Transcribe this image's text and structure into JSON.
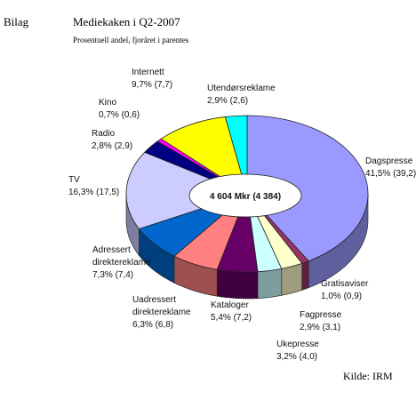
{
  "header": {
    "section": "Bilag",
    "title": "Mediekaken i Q2-2007",
    "subtitle": "Prosentuell andel, fjoråret i parentes"
  },
  "footer": {
    "source": "Kilde: IRM"
  },
  "chart_data": {
    "type": "pie",
    "style": "3d-donut",
    "center_label": "4 604 Mkr (4 384)",
    "total": 4604,
    "total_previous": 4384,
    "unit": "Mkr",
    "slices": [
      {
        "name": "Dagspresse",
        "value": 41.5,
        "previous": 39.2,
        "value_text": "41,5% (39,2)",
        "color": "#9999ff"
      },
      {
        "name": "Gratisaviser",
        "value": 1.0,
        "previous": 0.9,
        "value_text": "1,0% (0,9)",
        "color": "#993366"
      },
      {
        "name": "Fagpresse",
        "value": 2.9,
        "previous": 3.1,
        "value_text": "2,9% (3,1)",
        "color": "#ffffcc"
      },
      {
        "name": "Ukepresse",
        "value": 3.2,
        "previous": 4.0,
        "value_text": "3,2% (4,0)",
        "color": "#ccffff"
      },
      {
        "name": "Kataloger",
        "value": 5.4,
        "previous": 7.2,
        "value_text": "5,4% (7,2)",
        "color": "#660066"
      },
      {
        "name": "Uadressert direktereklame",
        "lines": [
          "Uadressert",
          "direktereklame"
        ],
        "value": 6.3,
        "previous": 6.8,
        "value_text": "6,3% (6,8)",
        "color": "#ff8080"
      },
      {
        "name": "Adressert direktereklame",
        "lines": [
          "Adressert",
          "direktereklame"
        ],
        "value": 7.3,
        "previous": 7.4,
        "value_text": "7,3% (7,4)",
        "color": "#0066cc"
      },
      {
        "name": "TV",
        "value": 16.3,
        "previous": 17.5,
        "value_text": "16,3% (17,5)",
        "color": "#ccccff"
      },
      {
        "name": "Radio",
        "value": 2.8,
        "previous": 2.9,
        "value_text": "2,8% (2,9)",
        "color": "#000080"
      },
      {
        "name": "Kino",
        "value": 0.7,
        "previous": 0.6,
        "value_text": "0,7% (0,6)",
        "color": "#ff00ff"
      },
      {
        "name": "Internett",
        "value": 9.7,
        "previous": 7.7,
        "value_text": "9,7% (7,7)",
        "color": "#ffff00"
      },
      {
        "name": "Utendørsreklame",
        "value": 2.9,
        "previous": 2.6,
        "value_text": "2,9% (2,6)",
        "color": "#00ffff"
      }
    ]
  }
}
